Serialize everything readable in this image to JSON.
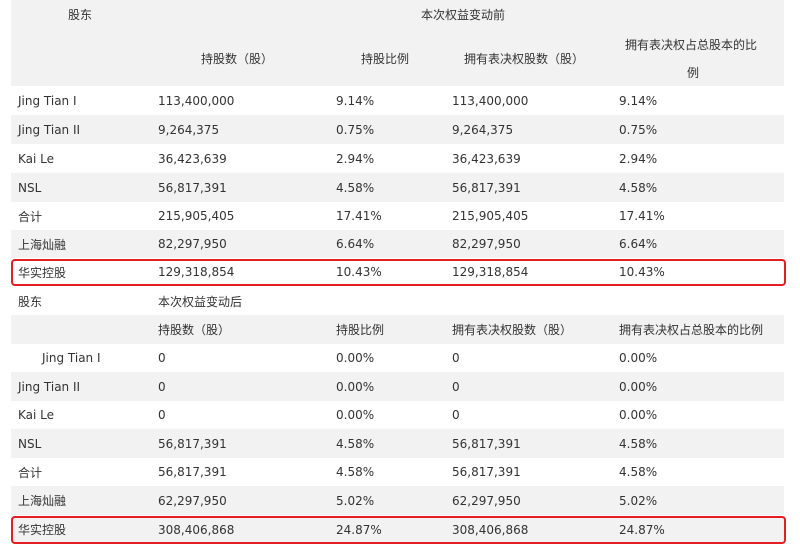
{
  "table1": {
    "shareholder_header": "股东",
    "group_header": "本次权益变动前",
    "col_headers": [
      "持股数（股）",
      "持股比例",
      "拥有表决权股数（股）",
      "拥有表决权占总股本的比",
      "例"
    ],
    "rows": [
      {
        "name": "Jing Tian I",
        "shares": "113,400,000",
        "ratio": "9.14%",
        "vote_shares": "113,400,000",
        "vote_ratio": "9.14%"
      },
      {
        "name": "Jing Tian II",
        "shares": "9,264,375",
        "ratio": "0.75%",
        "vote_shares": "9,264,375",
        "vote_ratio": "0.75%"
      },
      {
        "name": "Kai Le",
        "shares": "36,423,639",
        "ratio": "2.94%",
        "vote_shares": "36,423,639",
        "vote_ratio": "2.94%"
      },
      {
        "name": "NSL",
        "shares": "56,817,391",
        "ratio": "4.58%",
        "vote_shares": "56,817,391",
        "vote_ratio": "4.58%"
      },
      {
        "name": "合计",
        "shares": "215,905,405",
        "ratio": "17.41%",
        "vote_shares": "215,905,405",
        "vote_ratio": "17.41%"
      },
      {
        "name": "上海灿融",
        "shares": "82,297,950",
        "ratio": "6.64%",
        "vote_shares": "82,297,950",
        "vote_ratio": "6.64%"
      },
      {
        "name": "华实控股",
        "shares": "129,318,854",
        "ratio": "10.43%",
        "vote_shares": "129,318,854",
        "vote_ratio": "10.43%"
      }
    ]
  },
  "table2": {
    "shareholder_header": "股东",
    "group_header": "本次权益变动后",
    "col_headers": [
      "持股数（股）",
      "持股比例",
      "拥有表决权股数（股）",
      "拥有表决权占总股本的比例"
    ],
    "rows": [
      {
        "name": "Jing Tian I",
        "shares": "0",
        "ratio": "0.00%",
        "vote_shares": "0",
        "vote_ratio": "0.00%"
      },
      {
        "name": "Jing Tian II",
        "shares": "0",
        "ratio": "0.00%",
        "vote_shares": "0",
        "vote_ratio": "0.00%"
      },
      {
        "name": "Kai Le",
        "shares": "0",
        "ratio": "0.00%",
        "vote_shares": "0",
        "vote_ratio": "0.00%"
      },
      {
        "name": "NSL",
        "shares": "56,817,391",
        "ratio": "4.58%",
        "vote_shares": "56,817,391",
        "vote_ratio": "4.58%"
      },
      {
        "name": "合计",
        "shares": "56,817,391",
        "ratio": "4.58%",
        "vote_shares": "56,817,391",
        "vote_ratio": "4.58%"
      },
      {
        "name": "上海灿融",
        "shares": "62,297,950",
        "ratio": "5.02%",
        "vote_shares": "62,297,950",
        "vote_ratio": "5.02%"
      },
      {
        "name": "华实控股",
        "shares": "308,406,868",
        "ratio": "24.87%",
        "vote_shares": "308,406,868",
        "vote_ratio": "24.87%"
      }
    ]
  },
  "highlight_color": "#e31e24"
}
